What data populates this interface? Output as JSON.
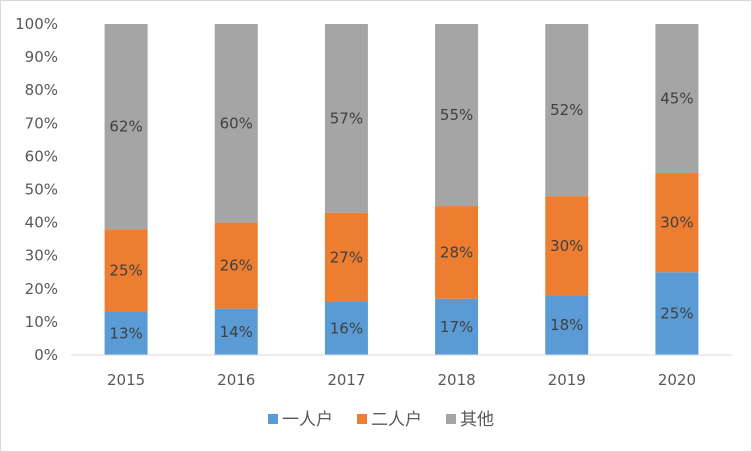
{
  "chart_data": {
    "type": "bar",
    "stacked": true,
    "normalized": true,
    "title": "",
    "xlabel": "",
    "ylabel": "",
    "categories": [
      "2015",
      "2016",
      "2017",
      "2018",
      "2019",
      "2020"
    ],
    "ylim": [
      0,
      100
    ],
    "y_ticks": [
      0,
      10,
      20,
      30,
      40,
      50,
      60,
      70,
      80,
      90,
      100
    ],
    "y_tick_labels": [
      "0%",
      "10%",
      "20%",
      "30%",
      "40%",
      "50%",
      "60%",
      "70%",
      "80%",
      "90%",
      "100%"
    ],
    "grid": false,
    "legend": "bottom",
    "series": [
      {
        "name": "一人户",
        "color": "#5b9bd5",
        "values": [
          13,
          14,
          16,
          17,
          18,
          25
        ],
        "labels": [
          "13%",
          "14%",
          "16%",
          "17%",
          "18%",
          "25%"
        ]
      },
      {
        "name": "二人户",
        "color": "#ed7d31",
        "values": [
          25,
          26,
          27,
          28,
          30,
          30
        ],
        "labels": [
          "25%",
          "26%",
          "27%",
          "28%",
          "30%",
          "30%"
        ]
      },
      {
        "name": "其他",
        "color": "#a5a5a5",
        "values": [
          62,
          60,
          57,
          55,
          52,
          45
        ],
        "labels": [
          "62%",
          "60%",
          "57%",
          "55%",
          "52%",
          "45%"
        ]
      }
    ]
  }
}
